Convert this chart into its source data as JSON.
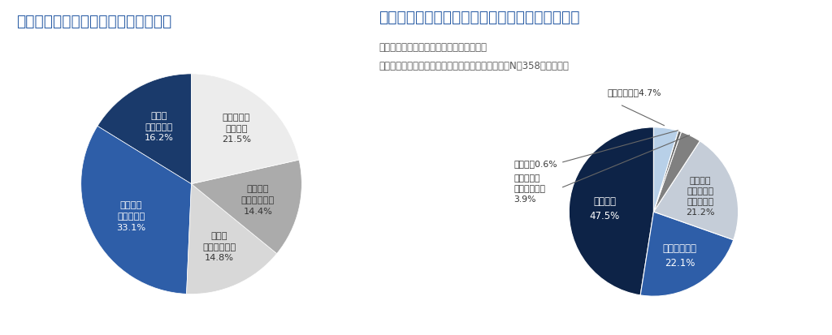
{
  "chart1": {
    "title": "地方で暮らすことにあこがれますか？",
    "title_color": "#2d5fa6",
    "slices": [
      {
        "label": "とても\nあこがれる\n16.2%",
        "value": 16.2,
        "color": "#1a3a6b",
        "text_color": "white"
      },
      {
        "label": "まあまあ\nあこがれる\n33.1%",
        "value": 33.1,
        "color": "#2e5ea8",
        "text_color": "white"
      },
      {
        "label": "あまり\nあこがれない\n14.8%",
        "value": 14.8,
        "color": "#d8d8d8",
        "text_color": "#333333"
      },
      {
        "label": "まったく\nあこがれない\n14.4%",
        "value": 14.4,
        "color": "#ababab",
        "text_color": "#333333"
      },
      {
        "label": "どちらとも\n言えない\n21.5%",
        "value": 21.5,
        "color": "#ececec",
        "text_color": "#333333"
      }
    ],
    "highlight_color": "#cc0000",
    "startangle": 90
  },
  "chart2": {
    "title": "地方暮らしはどのスタイルを最も希望しますか？",
    "title_color": "#2d5fa6",
    "subtitle1": "（「地方で暮らすことにあこがれる」かつ",
    "subtitle2": "「実際に地方暮らしをしてみたい」と回答した人（N＝358）が対象）",
    "subtitle_color": "#555555",
    "slices": [
      {
        "label": "完全移住\n47.5%",
        "value": 47.5,
        "color": "#0d2347",
        "text_color": "white"
      },
      {
        "label": "短期間の移住\n22.1%",
        "value": 22.1,
        "color": "#2e5ea8",
        "text_color": "white"
      },
      {
        "label": "都心にも\n自宅を持つ\n二拠点生活\n21.2%",
        "value": 21.2,
        "color": "#c5cdd8",
        "text_color": "#333333"
      },
      {
        "label": "別荘などに\n年に数回滞在\n3.9%",
        "value": 3.9,
        "color": "#808080",
        "text_color": "#333333"
      },
      {
        "label": "その他　0.6%",
        "value": 0.6,
        "color": "#666666",
        "text_color": "#333333"
      },
      {
        "label": "分からない　4.7%",
        "value": 4.7,
        "color": "#b8d0e8",
        "text_color": "#333333"
      }
    ],
    "startangle": 90
  },
  "background_color": "#ffffff"
}
